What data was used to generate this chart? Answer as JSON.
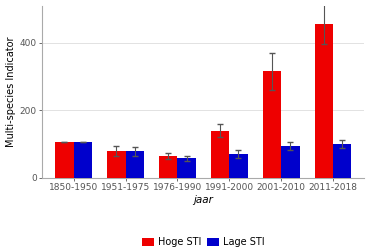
{
  "categories": [
    "1850-1950",
    "1951-1975",
    "1976-1990",
    "1991-2000",
    "2001-2010",
    "2011-2018"
  ],
  "hoge_sti": [
    105,
    80,
    65,
    140,
    315,
    455
  ],
  "lage_sti": [
    105,
    78,
    58,
    70,
    95,
    100
  ],
  "hoge_sti_err": [
    0,
    15,
    10,
    18,
    55,
    60
  ],
  "lage_sti_err": [
    0,
    12,
    8,
    12,
    12,
    12
  ],
  "bar_color_hoge": "#EE0000",
  "bar_color_lage": "#0000CC",
  "xlabel": "jaar",
  "ylabel": "Multi-species Indicator",
  "ylim": [
    0,
    510
  ],
  "yticks": [
    0,
    200,
    400
  ],
  "legend_hoge": "Hoge STI",
  "legend_lage": "Lage STI",
  "background_color": "#FFFFFF",
  "plot_bg_color": "#FFFFFF",
  "bar_width": 0.35,
  "ecolor": "#555555",
  "capsize": 2,
  "tick_fontsize": 6.5,
  "label_fontsize": 7.5,
  "ylabel_fontsize": 7
}
